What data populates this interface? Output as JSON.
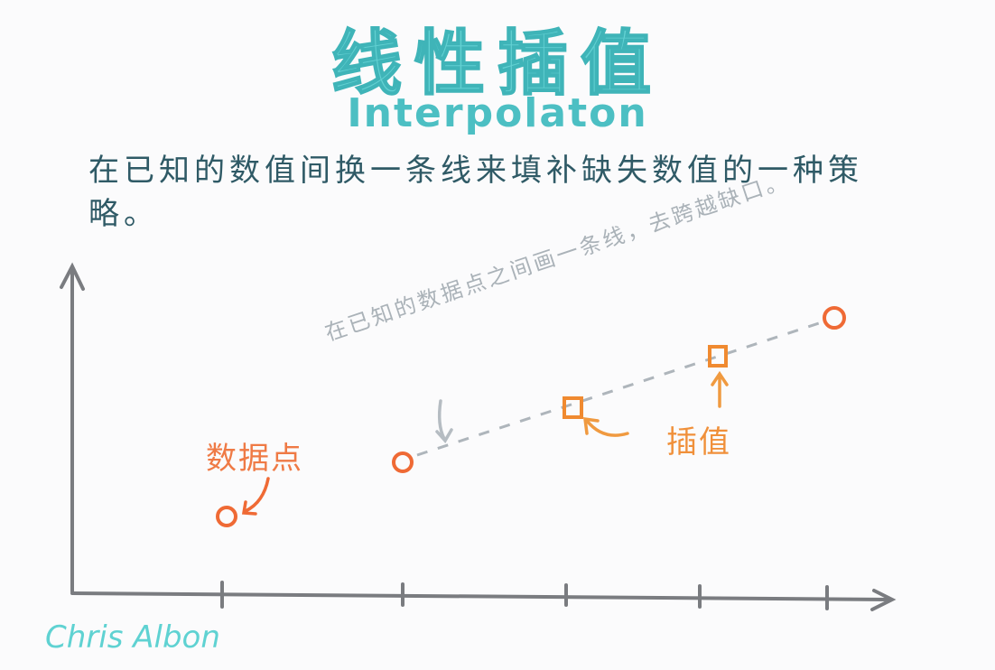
{
  "header": {
    "title": "线性插值",
    "subtitle": "Interpolaton"
  },
  "description": "在已知的数值间换一条线来填补缺失数值的一种策略。",
  "annotation": "在已知的数据点之间画一条线，去跨越缺口。",
  "labels": {
    "data_points": "数据点",
    "interpolated": "插值"
  },
  "signature": "Chris Albon"
}
